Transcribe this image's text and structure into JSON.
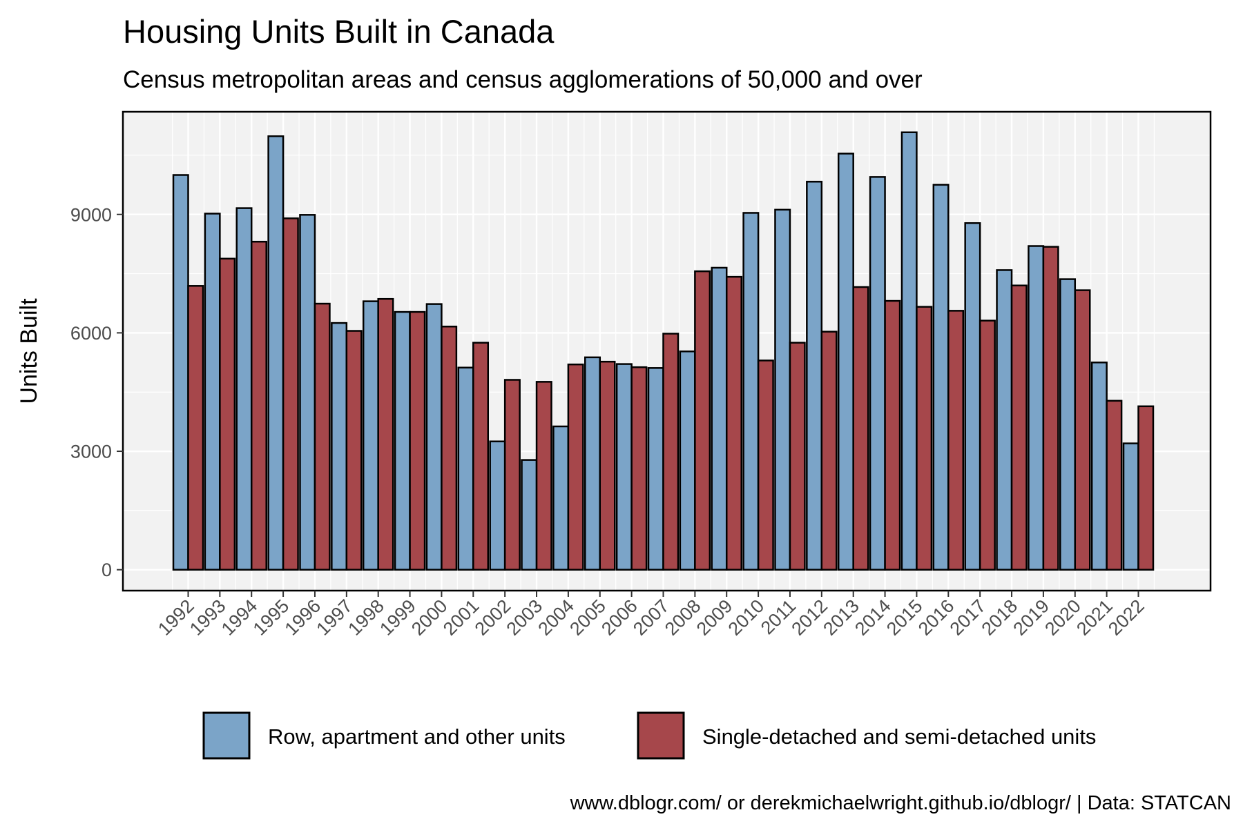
{
  "chart_data": {
    "type": "bar",
    "title": "Housing Units Built in Canada",
    "subtitle": "Census metropolitan areas and census agglomerations of 50,000 and over",
    "xlabel": "",
    "ylabel": "Units Built",
    "caption": "www.dblogr.com/ or derekmichaelwright.github.io/dblogr/ | Data: STATCAN",
    "ylim": [
      -530,
      11600
    ],
    "yticks": [
      "0",
      "3000",
      "6000",
      "9000"
    ],
    "grid": true,
    "legend_position": "bottom",
    "categories": [
      "1992",
      "1993",
      "1994",
      "1995",
      "1996",
      "1997",
      "1998",
      "1999",
      "2000",
      "2001",
      "2002",
      "2003",
      "2004",
      "2005",
      "2006",
      "2007",
      "2008",
      "2009",
      "2010",
      "2011",
      "2012",
      "2013",
      "2014",
      "2015",
      "2016",
      "2017",
      "2018",
      "2019",
      "2020",
      "2021",
      "2022"
    ],
    "series": [
      {
        "name": "Row, apartment and other units",
        "color": "#7BA4C8",
        "values": [
          10000,
          9020,
          9160,
          10980,
          8990,
          6250,
          6800,
          6530,
          6730,
          5120,
          3250,
          2780,
          3630,
          5380,
          5210,
          5110,
          5530,
          7650,
          9040,
          9120,
          9830,
          10540,
          9950,
          11080,
          9750,
          8780,
          7590,
          8200,
          7360,
          5250,
          3200
        ]
      },
      {
        "name": "Single-detached and semi-detached units",
        "color": "#A6474B",
        "values": [
          7190,
          7880,
          8310,
          8900,
          6740,
          6050,
          6860,
          6530,
          6160,
          5750,
          4810,
          4760,
          5200,
          5270,
          5130,
          5980,
          7560,
          7420,
          5300,
          5750,
          6030,
          7160,
          6810,
          6660,
          6560,
          6310,
          7200,
          8180,
          7080,
          4280,
          4140
        ]
      }
    ]
  }
}
